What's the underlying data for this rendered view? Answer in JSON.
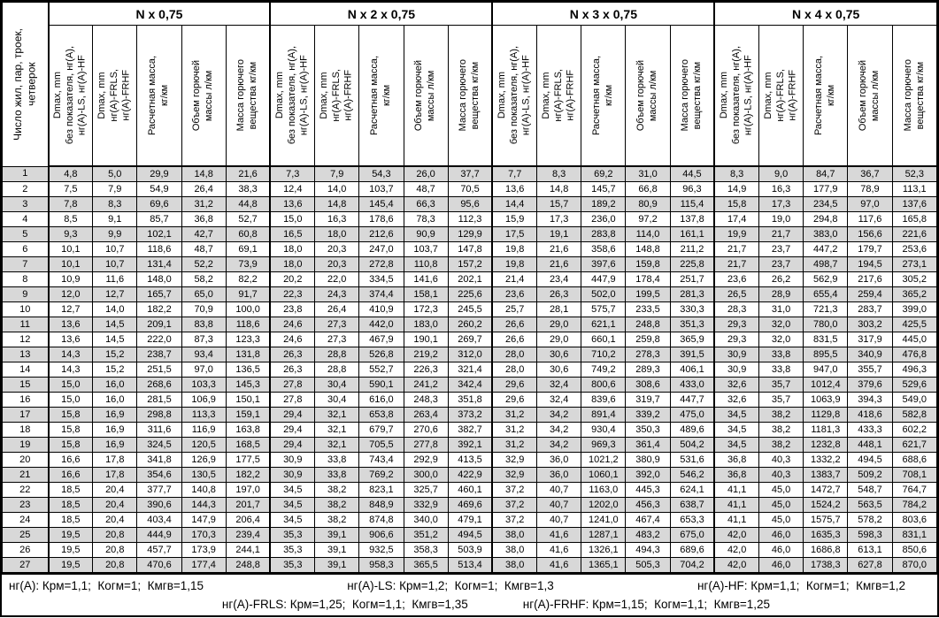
{
  "table": {
    "row_label_header": "Число жил, пар, троек,\nчетверок",
    "groups": [
      "N x 0,75",
      "N x 2 x 0,75",
      "N x 3 x 0,75",
      "N x 4 x 0,75"
    ],
    "sub_headers": [
      "Dmax, mm\nбез показателя, нг(А),\nнг(А)-LS, нг(А)-HF",
      "Dmax, mm\nнг(А)-FRLS,\nнг(А)-FRHF",
      "Расчетная масса,\nкг/км",
      "Объем горючей\nмассы л/км",
      "Масса горючего\nвещества кг/км"
    ],
    "rows": [
      {
        "n": "1",
        "values": [
          "4,8",
          "5,0",
          "29,9",
          "14,8",
          "21,6",
          "7,3",
          "7,9",
          "54,3",
          "26,0",
          "37,7",
          "7,7",
          "8,3",
          "69,2",
          "31,0",
          "44,5",
          "8,3",
          "9,0",
          "84,7",
          "36,7",
          "52,3"
        ]
      },
      {
        "n": "2",
        "values": [
          "7,5",
          "7,9",
          "54,9",
          "26,4",
          "38,3",
          "12,4",
          "14,0",
          "103,7",
          "48,7",
          "70,5",
          "13,6",
          "14,8",
          "145,7",
          "66,8",
          "96,3",
          "14,9",
          "16,3",
          "177,9",
          "78,9",
          "113,1"
        ]
      },
      {
        "n": "3",
        "values": [
          "7,8",
          "8,3",
          "69,6",
          "31,2",
          "44,8",
          "13,6",
          "14,8",
          "145,4",
          "66,3",
          "95,6",
          "14,4",
          "15,7",
          "189,2",
          "80,9",
          "115,4",
          "15,8",
          "17,3",
          "234,5",
          "97,0",
          "137,6"
        ]
      },
      {
        "n": "4",
        "values": [
          "8,5",
          "9,1",
          "85,7",
          "36,8",
          "52,7",
          "15,0",
          "16,3",
          "178,6",
          "78,3",
          "112,3",
          "15,9",
          "17,3",
          "236,0",
          "97,2",
          "137,8",
          "17,4",
          "19,0",
          "294,8",
          "117,6",
          "165,8"
        ]
      },
      {
        "n": "5",
        "values": [
          "9,3",
          "9,9",
          "102,1",
          "42,7",
          "60,8",
          "16,5",
          "18,0",
          "212,6",
          "90,9",
          "129,9",
          "17,5",
          "19,1",
          "283,8",
          "114,0",
          "161,1",
          "19,9",
          "21,7",
          "383,0",
          "156,6",
          "221,6"
        ]
      },
      {
        "n": "6",
        "values": [
          "10,1",
          "10,7",
          "118,6",
          "48,7",
          "69,1",
          "18,0",
          "20,3",
          "247,0",
          "103,7",
          "147,8",
          "19,8",
          "21,6",
          "358,6",
          "148,8",
          "211,2",
          "21,7",
          "23,7",
          "447,2",
          "179,7",
          "253,6"
        ]
      },
      {
        "n": "7",
        "values": [
          "10,1",
          "10,7",
          "131,4",
          "52,2",
          "73,9",
          "18,0",
          "20,3",
          "272,8",
          "110,8",
          "157,2",
          "19,8",
          "21,6",
          "397,6",
          "159,8",
          "225,8",
          "21,7",
          "23,7",
          "498,7",
          "194,5",
          "273,1"
        ]
      },
      {
        "n": "8",
        "values": [
          "10,9",
          "11,6",
          "148,0",
          "58,2",
          "82,2",
          "20,2",
          "22,0",
          "334,5",
          "141,6",
          "202,1",
          "21,4",
          "23,4",
          "447,9",
          "178,4",
          "251,7",
          "23,6",
          "26,2",
          "562,9",
          "217,6",
          "305,2"
        ]
      },
      {
        "n": "9",
        "values": [
          "12,0",
          "12,7",
          "165,7",
          "65,0",
          "91,7",
          "22,3",
          "24,3",
          "374,4",
          "158,1",
          "225,6",
          "23,6",
          "26,3",
          "502,0",
          "199,5",
          "281,3",
          "26,5",
          "28,9",
          "655,4",
          "259,4",
          "365,2"
        ]
      },
      {
        "n": "10",
        "values": [
          "12,7",
          "14,0",
          "182,2",
          "70,9",
          "100,0",
          "23,8",
          "26,4",
          "410,9",
          "172,3",
          "245,5",
          "25,7",
          "28,1",
          "575,7",
          "233,5",
          "330,3",
          "28,3",
          "31,0",
          "721,3",
          "283,7",
          "399,0"
        ]
      },
      {
        "n": "11",
        "values": [
          "13,6",
          "14,5",
          "209,1",
          "83,8",
          "118,6",
          "24,6",
          "27,3",
          "442,0",
          "183,0",
          "260,2",
          "26,6",
          "29,0",
          "621,1",
          "248,8",
          "351,3",
          "29,3",
          "32,0",
          "780,0",
          "303,2",
          "425,5"
        ]
      },
      {
        "n": "12",
        "values": [
          "13,6",
          "14,5",
          "222,0",
          "87,3",
          "123,3",
          "24,6",
          "27,3",
          "467,9",
          "190,1",
          "269,7",
          "26,6",
          "29,0",
          "660,1",
          "259,8",
          "365,9",
          "29,3",
          "32,0",
          "831,5",
          "317,9",
          "445,0"
        ]
      },
      {
        "n": "13",
        "values": [
          "14,3",
          "15,2",
          "238,7",
          "93,4",
          "131,8",
          "26,3",
          "28,8",
          "526,8",
          "219,2",
          "312,0",
          "28,0",
          "30,6",
          "710,2",
          "278,3",
          "391,5",
          "30,9",
          "33,8",
          "895,5",
          "340,9",
          "476,8"
        ]
      },
      {
        "n": "14",
        "values": [
          "14,3",
          "15,2",
          "251,5",
          "97,0",
          "136,5",
          "26,3",
          "28,8",
          "552,7",
          "226,3",
          "321,4",
          "28,0",
          "30,6",
          "749,2",
          "289,3",
          "406,1",
          "30,9",
          "33,8",
          "947,0",
          "355,7",
          "496,3"
        ]
      },
      {
        "n": "15",
        "values": [
          "15,0",
          "16,0",
          "268,6",
          "103,3",
          "145,3",
          "27,8",
          "30,4",
          "590,1",
          "241,2",
          "342,4",
          "29,6",
          "32,4",
          "800,6",
          "308,6",
          "433,0",
          "32,6",
          "35,7",
          "1012,4",
          "379,6",
          "529,6"
        ]
      },
      {
        "n": "16",
        "values": [
          "15,0",
          "16,0",
          "281,5",
          "106,9",
          "150,1",
          "27,8",
          "30,4",
          "616,0",
          "248,3",
          "351,8",
          "29,6",
          "32,4",
          "839,6",
          "319,7",
          "447,7",
          "32,6",
          "35,7",
          "1063,9",
          "394,3",
          "549,0"
        ]
      },
      {
        "n": "17",
        "values": [
          "15,8",
          "16,9",
          "298,8",
          "113,3",
          "159,1",
          "29,4",
          "32,1",
          "653,8",
          "263,4",
          "373,2",
          "31,2",
          "34,2",
          "891,4",
          "339,2",
          "475,0",
          "34,5",
          "38,2",
          "1129,8",
          "418,6",
          "582,8"
        ]
      },
      {
        "n": "18",
        "values": [
          "15,8",
          "16,9",
          "311,6",
          "116,9",
          "163,8",
          "29,4",
          "32,1",
          "679,7",
          "270,6",
          "382,7",
          "31,2",
          "34,2",
          "930,4",
          "350,3",
          "489,6",
          "34,5",
          "38,2",
          "1181,3",
          "433,3",
          "602,2"
        ]
      },
      {
        "n": "19",
        "values": [
          "15,8",
          "16,9",
          "324,5",
          "120,5",
          "168,5",
          "29,4",
          "32,1",
          "705,5",
          "277,8",
          "392,1",
          "31,2",
          "34,2",
          "969,3",
          "361,4",
          "504,2",
          "34,5",
          "38,2",
          "1232,8",
          "448,1",
          "621,7"
        ]
      },
      {
        "n": "20",
        "values": [
          "16,6",
          "17,8",
          "341,8",
          "126,9",
          "177,5",
          "30,9",
          "33,8",
          "743,4",
          "292,9",
          "413,5",
          "32,9",
          "36,0",
          "1021,2",
          "380,9",
          "531,6",
          "36,8",
          "40,3",
          "1332,2",
          "494,5",
          "688,6"
        ]
      },
      {
        "n": "21",
        "values": [
          "16,6",
          "17,8",
          "354,6",
          "130,5",
          "182,2",
          "30,9",
          "33,8",
          "769,2",
          "300,0",
          "422,9",
          "32,9",
          "36,0",
          "1060,1",
          "392,0",
          "546,2",
          "36,8",
          "40,3",
          "1383,7",
          "509,2",
          "708,1"
        ]
      },
      {
        "n": "22",
        "values": [
          "18,5",
          "20,4",
          "377,7",
          "140,8",
          "197,0",
          "34,5",
          "38,2",
          "823,1",
          "325,7",
          "460,1",
          "37,2",
          "40,7",
          "1163,0",
          "445,3",
          "624,1",
          "41,1",
          "45,0",
          "1472,7",
          "548,7",
          "764,7"
        ]
      },
      {
        "n": "23",
        "values": [
          "18,5",
          "20,4",
          "390,6",
          "144,3",
          "201,7",
          "34,5",
          "38,2",
          "848,9",
          "332,9",
          "469,6",
          "37,2",
          "40,7",
          "1202,0",
          "456,3",
          "638,7",
          "41,1",
          "45,0",
          "1524,2",
          "563,5",
          "784,2"
        ]
      },
      {
        "n": "24",
        "values": [
          "18,5",
          "20,4",
          "403,4",
          "147,9",
          "206,4",
          "34,5",
          "38,2",
          "874,8",
          "340,0",
          "479,1",
          "37,2",
          "40,7",
          "1241,0",
          "467,4",
          "653,3",
          "41,1",
          "45,0",
          "1575,7",
          "578,2",
          "803,6"
        ]
      },
      {
        "n": "25",
        "values": [
          "19,5",
          "20,8",
          "444,9",
          "170,3",
          "239,4",
          "35,3",
          "39,1",
          "906,6",
          "351,2",
          "494,5",
          "38,0",
          "41,6",
          "1287,1",
          "483,2",
          "675,0",
          "42,0",
          "46,0",
          "1635,3",
          "598,3",
          "831,1"
        ]
      },
      {
        "n": "26",
        "values": [
          "19,5",
          "20,8",
          "457,7",
          "173,9",
          "244,1",
          "35,3",
          "39,1",
          "932,5",
          "358,3",
          "503,9",
          "38,0",
          "41,6",
          "1326,1",
          "494,3",
          "689,6",
          "42,0",
          "46,0",
          "1686,8",
          "613,1",
          "850,6"
        ]
      },
      {
        "n": "27",
        "values": [
          "19,5",
          "20,8",
          "470,6",
          "177,4",
          "248,8",
          "35,3",
          "39,1",
          "958,3",
          "365,5",
          "513,4",
          "38,0",
          "41,6",
          "1365,1",
          "505,3",
          "704,2",
          "42,0",
          "46,0",
          "1738,3",
          "627,8",
          "870,0"
        ]
      }
    ]
  },
  "footer": {
    "line1": [
      "нг(А): Крм=1,1;  Когм=1;  Кмгв=1,15",
      "нг(А)-LS: Крм=1,2;  Когм=1;  Кмгв=1,3",
      "нг(А)-HF: Крм=1,1;  Когм=1;  Кмгв=1,2"
    ],
    "line2": [
      "нг(А)-FRLS: Крм=1,25;  Когм=1,1;  Кмгв=1,35",
      "нг(А)-FRHF: Крм=1,15;  Когм=1,1;  Кмгв=1,25"
    ]
  },
  "colors": {
    "stripe": "#d8d8d8",
    "border": "#000000"
  }
}
